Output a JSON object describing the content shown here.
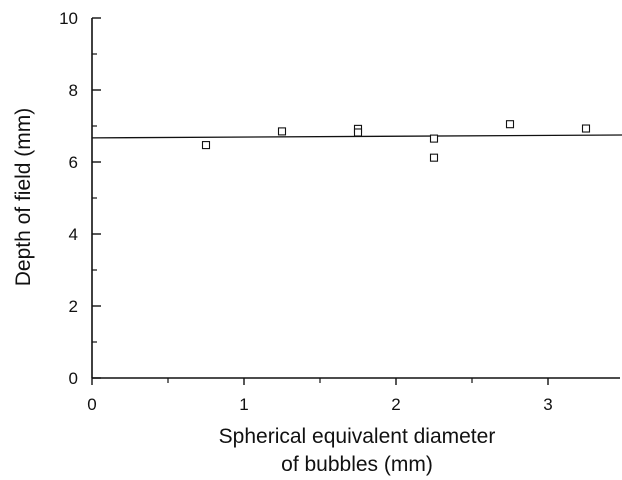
{
  "chart_data": {
    "type": "scatter",
    "xlabel_line1": "Spherical equivalent diameter",
    "xlabel_line2": "of bubbles (mm)",
    "ylabel": "Depth of field (mm)",
    "xlim": [
      0,
      3.5
    ],
    "ylim": [
      0,
      10
    ],
    "x_major_ticks": [
      0,
      1,
      2,
      3
    ],
    "x_minor_ticks": [
      0.5,
      1.5,
      2.5
    ],
    "y_major_ticks": [
      0,
      2,
      4,
      6,
      8,
      10
    ],
    "y_minor_ticks": [
      1,
      3,
      5,
      7,
      9
    ],
    "grid": false,
    "points": [
      {
        "x": 0.75,
        "y": 6.47
      },
      {
        "x": 1.25,
        "y": 6.85
      },
      {
        "x": 1.75,
        "y": 6.92
      },
      {
        "x": 1.75,
        "y": 6.82
      },
      {
        "x": 2.25,
        "y": 6.65
      },
      {
        "x": 2.25,
        "y": 6.12
      },
      {
        "x": 2.75,
        "y": 7.05
      },
      {
        "x": 3.25,
        "y": 6.93
      }
    ],
    "fit_line": {
      "x": [
        0,
        3.5
      ],
      "y": [
        6.67,
        6.75
      ]
    }
  }
}
